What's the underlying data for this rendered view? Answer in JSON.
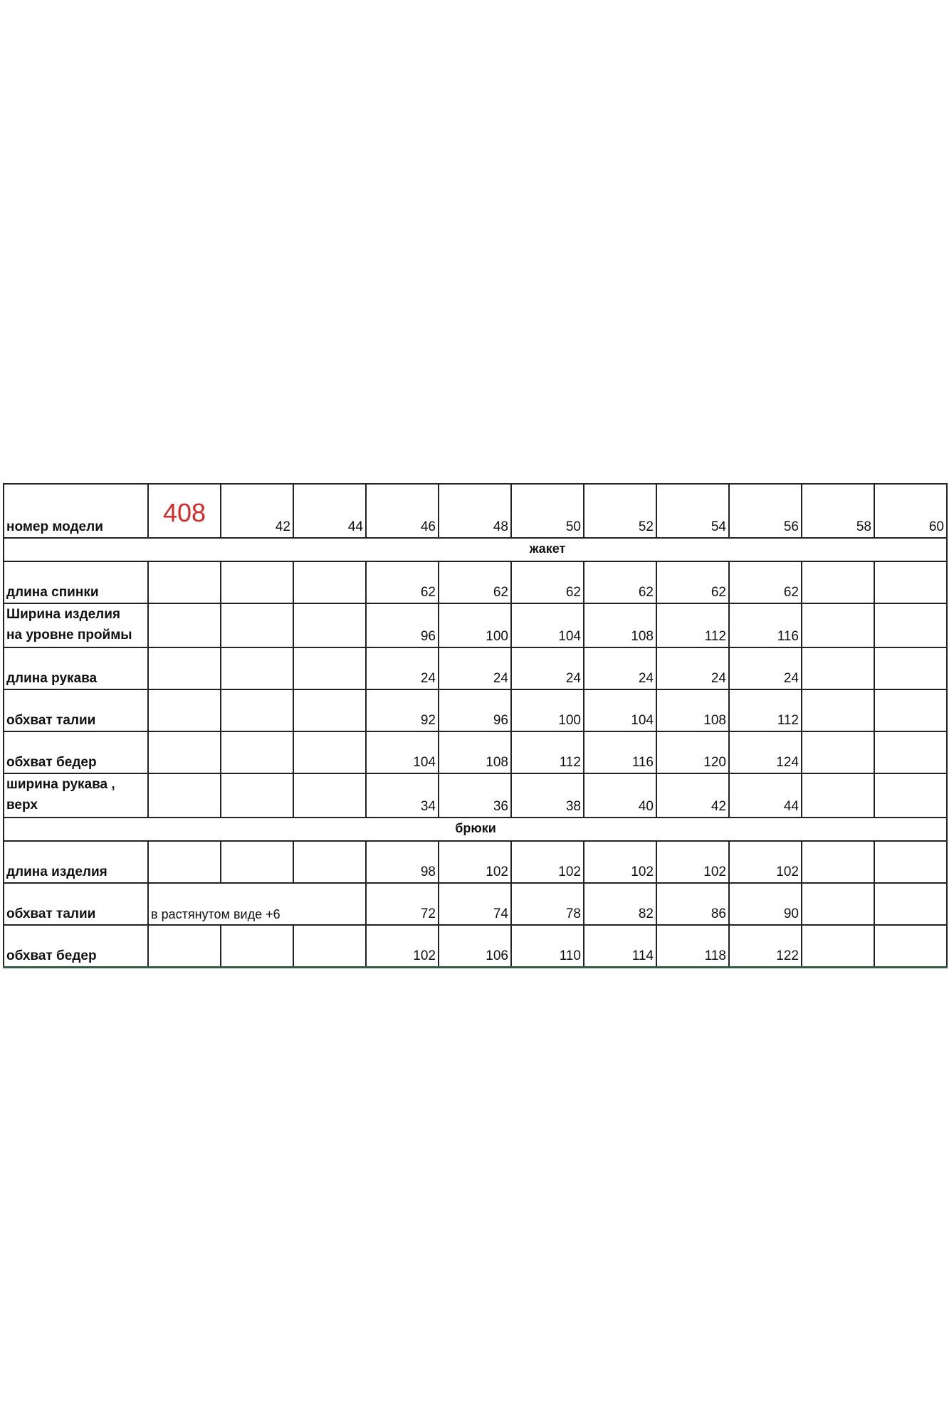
{
  "header": {
    "label": "номер модели",
    "model_number": "408",
    "sizes": [
      "42",
      "44",
      "46",
      "48",
      "50",
      "52",
      "54",
      "56",
      "58",
      "60"
    ]
  },
  "sections": [
    {
      "title": "жакет",
      "rows": [
        {
          "label": "длина спинки",
          "values": [
            "",
            "",
            "62",
            "62",
            "62",
            "62",
            "62",
            "62",
            "",
            ""
          ]
        },
        {
          "label_line1": "Ширина изделия",
          "label_line2": "на уровне проймы",
          "values": [
            "",
            "",
            "96",
            "100",
            "104",
            "108",
            "112",
            "116",
            "",
            ""
          ]
        },
        {
          "label": "длина рукава",
          "values": [
            "",
            "",
            "24",
            "24",
            "24",
            "24",
            "24",
            "24",
            "",
            ""
          ]
        },
        {
          "label": "обхват талии",
          "values": [
            "",
            "",
            "92",
            "96",
            "100",
            "104",
            "108",
            "112",
            "",
            ""
          ]
        },
        {
          "label": "обхват бедер",
          "values": [
            "",
            "",
            "104",
            "108",
            "112",
            "116",
            "120",
            "124",
            "",
            ""
          ]
        },
        {
          "label_line1": "ширина рукава ,",
          "label_line2": "верх",
          "values": [
            "",
            "",
            "34",
            "36",
            "38",
            "40",
            "42",
            "44",
            "",
            ""
          ]
        }
      ]
    },
    {
      "title": "брюки",
      "rows": [
        {
          "label": "длина изделия",
          "values": [
            "",
            "",
            "98",
            "102",
            "102",
            "102",
            "102",
            "102",
            "",
            ""
          ]
        },
        {
          "label": "обхват талии",
          "note": "в растянутом виде +6",
          "values": [
            "",
            "",
            "72",
            "74",
            "78",
            "82",
            "86",
            "90",
            "",
            ""
          ]
        },
        {
          "label": "обхват бедер",
          "values": [
            "",
            "",
            "102",
            "106",
            "110",
            "114",
            "118",
            "122",
            "",
            ""
          ]
        }
      ]
    }
  ],
  "colors": {
    "model_number": "#d42a2a",
    "bottom_border": "#2f5e45"
  }
}
